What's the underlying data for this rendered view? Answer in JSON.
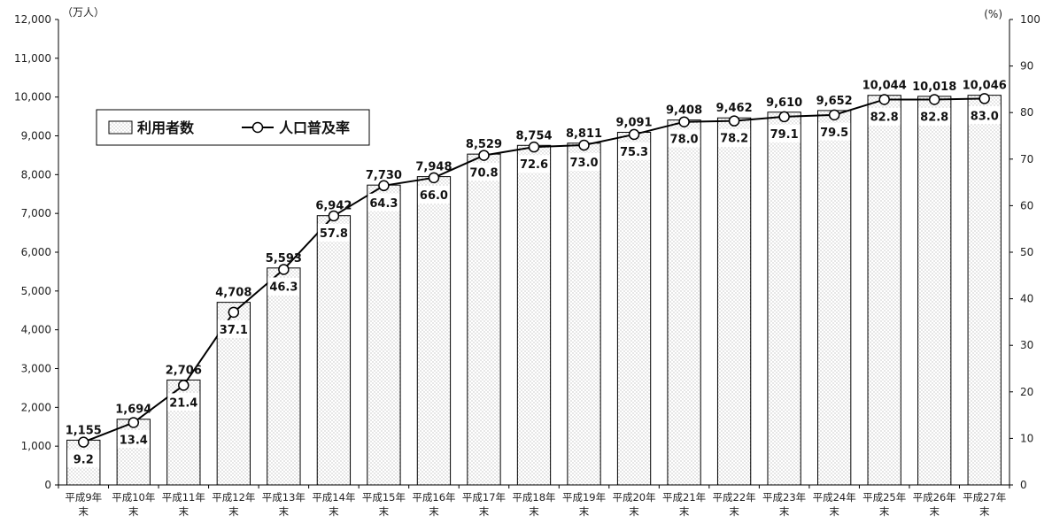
{
  "chart_data": {
    "type": "bar+line",
    "categories": [
      [
        "平成9年",
        "末"
      ],
      [
        "平成10年",
        "末"
      ],
      [
        "平成11年",
        "末"
      ],
      [
        "平成12年",
        "末"
      ],
      [
        "平成13年",
        "末"
      ],
      [
        "平成14年",
        "末"
      ],
      [
        "平成15年",
        "末"
      ],
      [
        "平成16年",
        "末"
      ],
      [
        "平成17年",
        "末"
      ],
      [
        "平成18年",
        "末"
      ],
      [
        "平成19年",
        "末"
      ],
      [
        "平成20年",
        "末"
      ],
      [
        "平成21年",
        "末"
      ],
      [
        "平成22年",
        "末"
      ],
      [
        "平成23年",
        "末"
      ],
      [
        "平成24年",
        "末"
      ],
      [
        "平成25年",
        "末"
      ],
      [
        "平成26年",
        "末"
      ],
      [
        "平成27年",
        "末"
      ]
    ],
    "series": [
      {
        "name": "利用者数",
        "type": "bar",
        "axis": "left",
        "values": [
          1155,
          1694,
          2706,
          4708,
          5593,
          6942,
          7730,
          7948,
          8529,
          8754,
          8811,
          9091,
          9408,
          9462,
          9610,
          9652,
          10044,
          10018,
          10046
        ],
        "labels": [
          "1,155",
          "1,694",
          "2,706",
          "4,708",
          "5,593",
          "6,942",
          "7,730",
          "7,948",
          "8,529",
          "8,754",
          "8,811",
          "9,091",
          "9,408",
          "9,462",
          "9,610",
          "9,652",
          "10,044",
          "10,018",
          "10,046"
        ]
      },
      {
        "name": "人口普及率",
        "type": "line",
        "axis": "right",
        "values": [
          9.2,
          13.4,
          21.4,
          37.1,
          46.3,
          57.8,
          64.3,
          66.0,
          70.8,
          72.6,
          73.0,
          75.3,
          78.0,
          78.2,
          79.1,
          79.5,
          82.8,
          82.8,
          83.0
        ],
        "labels": [
          "9.2",
          "13.4",
          "21.4",
          "37.1",
          "46.3",
          "57.8",
          "64.3",
          "66.0",
          "70.8",
          "72.6",
          "73.0",
          "75.3",
          "78.0",
          "78.2",
          "79.1",
          "79.5",
          "82.8",
          "82.8",
          "83.0"
        ]
      }
    ],
    "y_left": {
      "unit": "（万人）",
      "range": [
        0,
        12000
      ],
      "ticks": [
        0,
        1000,
        2000,
        3000,
        4000,
        5000,
        6000,
        7000,
        8000,
        9000,
        10000,
        11000,
        12000
      ],
      "tick_labels": [
        "0",
        "1,000",
        "2,000",
        "3,000",
        "4,000",
        "5,000",
        "6,000",
        "7,000",
        "8,000",
        "9,000",
        "10,000",
        "11,000",
        "12,000"
      ]
    },
    "y_right": {
      "unit": "(%)",
      "range": [
        0,
        100
      ],
      "ticks": [
        0,
        10,
        20,
        30,
        40,
        50,
        60,
        70,
        80,
        90,
        100
      ],
      "tick_labels": [
        "0",
        "10",
        "20",
        "30",
        "40",
        "50",
        "60",
        "70",
        "80",
        "90",
        "100"
      ]
    },
    "grid": false,
    "legend": {
      "placement": "upper-left",
      "items": [
        "利用者数",
        "人口普及率"
      ]
    }
  }
}
